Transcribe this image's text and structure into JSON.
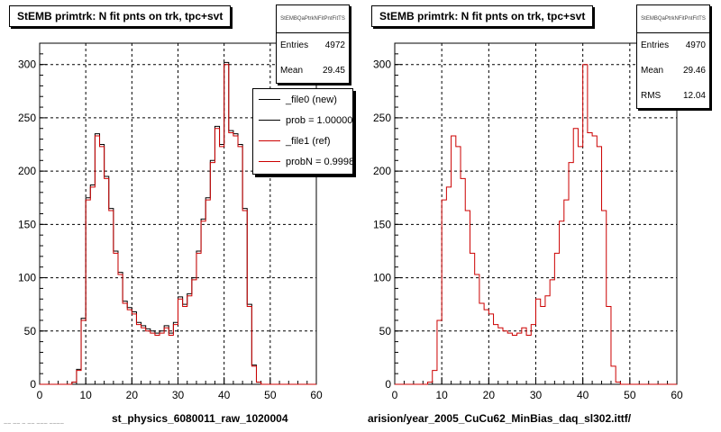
{
  "colors": {
    "new": "#000000",
    "ref": "#cc0000",
    "grid": "#000000"
  },
  "panels": [
    {
      "title": "StEMB primtrk: N fit pnts on trk, tpc+svt",
      "stats_name": "StEMBQaPtrkNFitPntFitTS",
      "stats": [
        {
          "label": "Entries",
          "value": "4972"
        },
        {
          "label": "Mean",
          "value": "29.45"
        }
      ],
      "xtitle": "st_physics_6080011_raw_1020004",
      "legend": [
        {
          "label": "_file0 (new)",
          "color": "#000000"
        },
        {
          "label": "prob = 1.000000",
          "color": "#000000"
        },
        {
          "label": "_file1 (ref)",
          "color": "#cc0000"
        },
        {
          "label": "probN = 0.99987",
          "color": "#cc0000"
        }
      ]
    },
    {
      "title": "StEMB primtrk: N fit pnts on trk, tpc+svt",
      "stats_name": "StEMBQaPtrkNFitPntFitTS",
      "stats": [
        {
          "label": "Entries",
          "value": "4970"
        },
        {
          "label": "Mean",
          "value": "29.46"
        },
        {
          "label": "RMS",
          "value": "12.04"
        }
      ],
      "xtitle": "arision/year_2005_CuCu62_MinBias_daq_sl302.ittf/"
    }
  ],
  "footer_text": "~~ ~~ ~ ~~ ~~~ ~~~~",
  "chart_data": [
    {
      "type": "line",
      "histogram": true,
      "xlim": [
        0,
        60
      ],
      "ylim": [
        0,
        320
      ],
      "xticks": [
        0,
        10,
        20,
        30,
        40,
        50,
        60
      ],
      "yticks": [
        0,
        50,
        100,
        150,
        200,
        250,
        300
      ],
      "grid": true,
      "bin_width": 1,
      "x": [
        0,
        1,
        2,
        3,
        4,
        5,
        6,
        7,
        8,
        9,
        10,
        11,
        12,
        13,
        14,
        15,
        16,
        17,
        18,
        19,
        20,
        21,
        22,
        23,
        24,
        25,
        26,
        27,
        28,
        29,
        30,
        31,
        32,
        33,
        34,
        35,
        36,
        37,
        38,
        39,
        40,
        41,
        42,
        43,
        44,
        45,
        46,
        47,
        48,
        49,
        50,
        51,
        52,
        53,
        54,
        55,
        56,
        57,
        58,
        59
      ],
      "series": [
        {
          "name": "_file0 (new)",
          "values": [
            0,
            0,
            0,
            0,
            0,
            0,
            0,
            2,
            14,
            62,
            175,
            187,
            235,
            225,
            195,
            165,
            125,
            105,
            78,
            72,
            68,
            58,
            55,
            52,
            50,
            48,
            50,
            55,
            48,
            58,
            82,
            75,
            85,
            100,
            125,
            155,
            175,
            210,
            242,
            225,
            302,
            238,
            235,
            225,
            165,
            75,
            18,
            2,
            0,
            0,
            0,
            0,
            0,
            0,
            0,
            0,
            0,
            0,
            0,
            0
          ]
        },
        {
          "name": "_file1 (ref)",
          "values": [
            0,
            0,
            0,
            0,
            0,
            0,
            0,
            2,
            13,
            60,
            173,
            185,
            233,
            223,
            193,
            163,
            123,
            103,
            76,
            70,
            66,
            56,
            53,
            50,
            48,
            46,
            48,
            53,
            46,
            56,
            80,
            73,
            83,
            98,
            123,
            153,
            173,
            208,
            240,
            223,
            300,
            236,
            233,
            223,
            163,
            73,
            17,
            2,
            0,
            0,
            0,
            0,
            0,
            0,
            0,
            0,
            0,
            0,
            0,
            0
          ]
        }
      ]
    },
    {
      "type": "line",
      "histogram": true,
      "xlim": [
        0,
        60
      ],
      "ylim": [
        0,
        320
      ],
      "xticks": [
        0,
        10,
        20,
        30,
        40,
        50,
        60
      ],
      "yticks": [
        0,
        50,
        100,
        150,
        200,
        250,
        300
      ],
      "grid": true,
      "bin_width": 1,
      "x": [
        0,
        1,
        2,
        3,
        4,
        5,
        6,
        7,
        8,
        9,
        10,
        11,
        12,
        13,
        14,
        15,
        16,
        17,
        18,
        19,
        20,
        21,
        22,
        23,
        24,
        25,
        26,
        27,
        28,
        29,
        30,
        31,
        32,
        33,
        34,
        35,
        36,
        37,
        38,
        39,
        40,
        41,
        42,
        43,
        44,
        45,
        46,
        47,
        48,
        49,
        50,
        51,
        52,
        53,
        54,
        55,
        56,
        57,
        58,
        59
      ],
      "series": [
        {
          "name": "_file1 (ref)",
          "values": [
            0,
            0,
            0,
            0,
            0,
            0,
            0,
            2,
            13,
            60,
            173,
            185,
            233,
            223,
            193,
            163,
            123,
            103,
            76,
            70,
            66,
            56,
            53,
            50,
            48,
            46,
            48,
            53,
            46,
            56,
            80,
            73,
            83,
            98,
            123,
            153,
            173,
            208,
            240,
            223,
            300,
            236,
            233,
            223,
            163,
            73,
            17,
            2,
            0,
            0,
            0,
            0,
            0,
            0,
            0,
            0,
            0,
            0,
            0,
            0
          ]
        }
      ]
    }
  ]
}
